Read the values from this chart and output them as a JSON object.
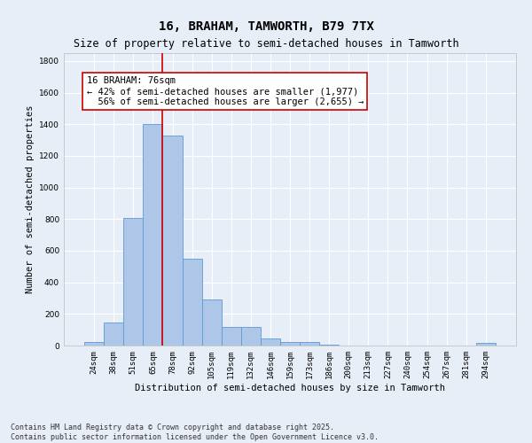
{
  "title1": "16, BRAHAM, TAMWORTH, B79 7TX",
  "title2": "Size of property relative to semi-detached houses in Tamworth",
  "xlabel": "Distribution of semi-detached houses by size in Tamworth",
  "ylabel": "Number of semi-detached properties",
  "categories": [
    "24sqm",
    "38sqm",
    "51sqm",
    "65sqm",
    "78sqm",
    "92sqm",
    "105sqm",
    "119sqm",
    "132sqm",
    "146sqm",
    "159sqm",
    "173sqm",
    "186sqm",
    "200sqm",
    "213sqm",
    "227sqm",
    "240sqm",
    "254sqm",
    "267sqm",
    "281sqm",
    "294sqm"
  ],
  "values": [
    20,
    145,
    810,
    1400,
    1330,
    550,
    290,
    120,
    120,
    45,
    25,
    25,
    5,
    0,
    0,
    0,
    0,
    0,
    0,
    0,
    15
  ],
  "bar_color": "#aec6e8",
  "bar_edge_color": "#5b9bd5",
  "vline_x": 3.5,
  "vline_color": "#cc0000",
  "annotation_text": "16 BRAHAM: 76sqm\n← 42% of semi-detached houses are smaller (1,977)\n  56% of semi-detached houses are larger (2,655) →",
  "annotation_box_color": "#ffffff",
  "annotation_box_edge_color": "#cc0000",
  "ylim": [
    0,
    1850
  ],
  "yticks": [
    0,
    200,
    400,
    600,
    800,
    1000,
    1200,
    1400,
    1600,
    1800
  ],
  "footer1": "Contains HM Land Registry data © Crown copyright and database right 2025.",
  "footer2": "Contains public sector information licensed under the Open Government Licence v3.0.",
  "background_color": "#e8eef8",
  "grid_color": "#ffffff",
  "title_fontsize": 10,
  "subtitle_fontsize": 8.5,
  "axis_label_fontsize": 7.5,
  "tick_fontsize": 6.5,
  "annotation_fontsize": 7.5,
  "footer_fontsize": 6.0
}
